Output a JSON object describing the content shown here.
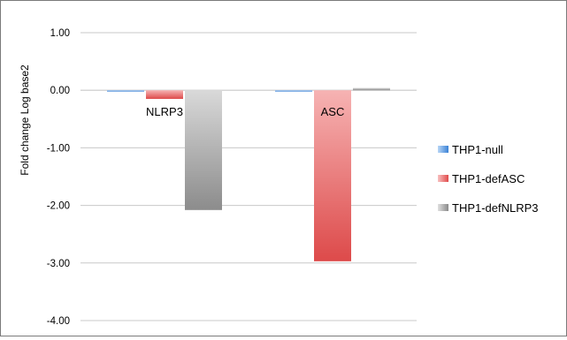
{
  "chart_data": {
    "type": "bar",
    "ylabel": "Fold change Log base2",
    "ylim": [
      -4,
      1
    ],
    "yticks": [
      1,
      0,
      -1,
      -2,
      -3,
      -4
    ],
    "ytick_labels": [
      "1.00",
      "0.00",
      "-1.00",
      "-2.00",
      "-3.00",
      "-4.00"
    ],
    "categories": [
      "NLRP3",
      "ASC"
    ],
    "grid": true,
    "legend_position": "right",
    "series": [
      {
        "name": "THP1-null",
        "values": [
          0.0,
          0.0
        ],
        "color": "#4a90d9"
      },
      {
        "name": "THP1-defASC",
        "values": [
          -0.15,
          -2.97
        ],
        "color": "#e35a5a"
      },
      {
        "name": "THP1-defNLRP3",
        "values": [
          -2.08,
          0.04
        ],
        "color": "#a6a6a6"
      }
    ]
  }
}
